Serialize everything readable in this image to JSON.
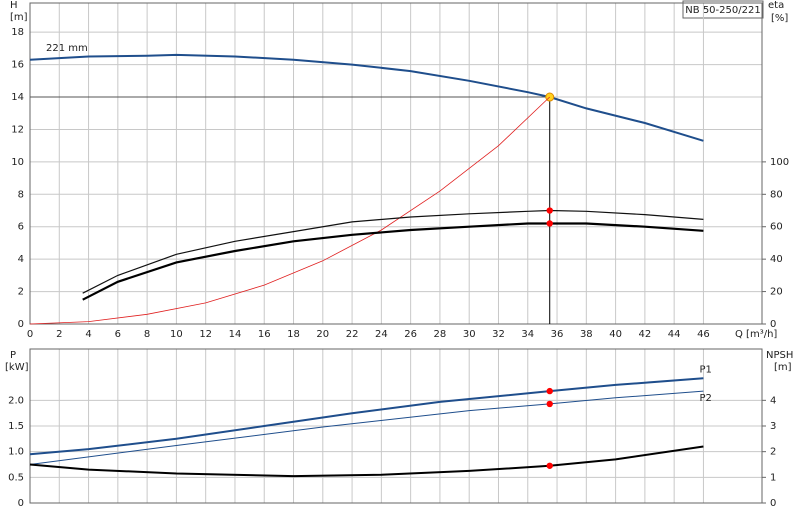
{
  "chart_data": [
    {
      "type": "line",
      "title": "NB 50-250/221",
      "annotation": "221 mm",
      "y_label": "H",
      "y_unit": "[m]",
      "y2_label": "eta",
      "y2_unit": "[%]",
      "x_label": "Q [m³/h]",
      "xlim": [
        0,
        50
      ],
      "xticks": [
        0,
        2,
        4,
        6,
        8,
        10,
        12,
        14,
        16,
        18,
        20,
        22,
        24,
        26,
        28,
        30,
        32,
        34,
        36,
        38,
        40,
        42,
        44,
        46
      ],
      "ylim": [
        0,
        19.8
      ],
      "yticks": [
        0,
        2,
        4,
        6,
        8,
        10,
        12,
        14,
        16,
        18
      ],
      "y2lim": [
        0,
        198
      ],
      "y2ticks": [
        0,
        20,
        40,
        60,
        80,
        100
      ],
      "grid": true,
      "duty_x": 35.5,
      "series": [
        {
          "color": "#1f4e8c",
          "width": 2,
          "marker_color": "#ffd21e",
          "guide": true,
          "x": [
            0,
            4,
            8,
            10,
            14,
            18,
            22,
            26,
            30,
            34,
            35.5,
            38,
            42,
            46
          ],
          "values": [
            16.3,
            16.5,
            16.55,
            16.6,
            16.5,
            16.3,
            16.0,
            15.6,
            15.0,
            14.3,
            14.0,
            13.3,
            12.4,
            11.3
          ]
        },
        {
          "color": "#e02020",
          "width": 0.8,
          "x": [
            0,
            4,
            8,
            12,
            16,
            20,
            24,
            28,
            32,
            35.5
          ],
          "values": [
            0,
            0.15,
            0.6,
            1.3,
            2.4,
            3.9,
            5.8,
            8.2,
            11.0,
            14.0
          ]
        },
        {
          "color": "#111111",
          "width": 1.2,
          "axis": "y2",
          "marker_color": "#ff0000",
          "x": [
            3.6,
            6,
            10,
            14,
            18,
            22,
            26,
            30,
            34,
            35.5,
            38,
            42,
            46
          ],
          "values": [
            19,
            30,
            43,
            51,
            57,
            63,
            66,
            68,
            69.5,
            70,
            69.5,
            67.5,
            64.5
          ]
        },
        {
          "color": "#000000",
          "width": 2.2,
          "axis": "y2",
          "marker_color": "#ff0000",
          "x": [
            3.6,
            6,
            10,
            14,
            18,
            22,
            26,
            30,
            34,
            35.5,
            38,
            42,
            46
          ],
          "values": [
            15,
            26,
            38,
            45,
            51,
            55,
            58,
            60,
            62,
            62,
            62,
            60,
            57.5
          ]
        }
      ]
    },
    {
      "type": "line",
      "y_label": "P",
      "y_unit": "[kW]",
      "y2_label": "NPSH",
      "y2_unit": "[m]",
      "xlim": [
        0,
        50
      ],
      "xticks": [
        0,
        2,
        4,
        6,
        8,
        10,
        12,
        14,
        16,
        18,
        20,
        22,
        24,
        26,
        28,
        30,
        32,
        34,
        36,
        38,
        40,
        42,
        44,
        46
      ],
      "ylim": [
        0,
        3
      ],
      "yticks": [
        0,
        0.5,
        {
          "value": 1,
          "label": "1.0"
        },
        1.5,
        {
          "value": 2,
          "label": "2.0"
        }
      ],
      "y2lim": [
        0,
        6
      ],
      "y2ticks": [
        0,
        1,
        2,
        3,
        4
      ],
      "grid": true,
      "duty_x": 35.5,
      "series": [
        {
          "name": "P1",
          "color": "#1f4e8c",
          "width": 2,
          "marker_color": "#ff0000",
          "x": [
            0,
            4,
            10,
            16,
            22,
            28,
            35.5,
            40,
            46
          ],
          "values": [
            0.95,
            1.05,
            1.25,
            1.5,
            1.75,
            1.97,
            2.18,
            2.3,
            2.43
          ]
        },
        {
          "name": "P2",
          "color": "#1f4e8c",
          "width": 1,
          "marker_color": "#ff0000",
          "x": [
            0,
            10,
            20,
            30,
            35.5,
            40,
            46
          ],
          "values": [
            0.75,
            1.12,
            1.48,
            1.8,
            1.93,
            2.05,
            2.18
          ]
        },
        {
          "color": "#000000",
          "width": 2,
          "axis": "y2",
          "marker_color": "#ff0000",
          "x": [
            0,
            4,
            10,
            18,
            24,
            30,
            35.5,
            40,
            46
          ],
          "values": [
            1.5,
            1.3,
            1.15,
            1.05,
            1.1,
            1.25,
            1.45,
            1.7,
            2.2
          ]
        }
      ]
    }
  ]
}
